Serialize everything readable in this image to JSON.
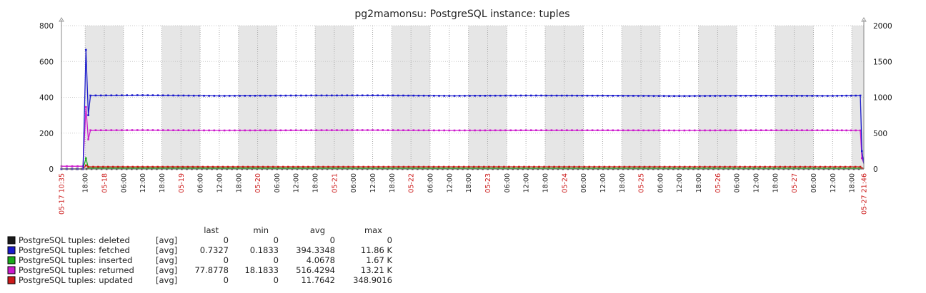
{
  "chart_data": {
    "type": "line",
    "title": "pg2mamonsu: PostgreSQL instance: tuples",
    "y_left": {
      "ticks": [
        "800",
        "600",
        "400",
        "200",
        "0"
      ],
      "ylim": [
        0,
        800
      ]
    },
    "y_right": {
      "ticks": [
        "2000",
        "1500",
        "1000",
        "500",
        "0"
      ],
      "ylim": [
        0,
        2000
      ]
    },
    "x_axis": {
      "start_label": "05-17 10:35",
      "end_label": "05-27 21:46",
      "date_labels": [
        "05-18",
        "05-19",
        "05-20",
        "05-21",
        "05-22",
        "05-23",
        "05-24",
        "05-25",
        "05-26",
        "05-27"
      ],
      "time_labels": [
        "18:00",
        "06:00",
        "12:00"
      ]
    },
    "grid": true,
    "legend_header": {
      "last": "last",
      "min": "min",
      "avg": "avg",
      "max": "max"
    },
    "series": [
      {
        "name": "PostgreSQL tuples: deleted",
        "func": "[avg]",
        "last": "0",
        "min": "0",
        "avg": "0",
        "max": "0",
        "color": "#1a1a1a",
        "axis": "left",
        "points": [
          [
            "05-17 10:35",
            0
          ],
          [
            "05-27 21:46",
            0
          ]
        ]
      },
      {
        "name": "PostgreSQL tuples: fetched",
        "func": "[avg]",
        "last": "0.7327",
        "min": "0.1833",
        "avg": "394.3348",
        "max": "11.86 K",
        "color": "#1a1acc",
        "axis": "left",
        "points": [
          [
            "05-17 10:35",
            0
          ],
          [
            "05-17 17:20",
            0
          ],
          [
            "05-17 18:15",
            665
          ],
          [
            "05-17 19:00",
            300
          ],
          [
            "05-17 19:40",
            410
          ],
          [
            "05-18 12:00",
            412
          ],
          [
            "05-19 12:00",
            408
          ],
          [
            "05-20 12:00",
            410
          ],
          [
            "05-21 12:00",
            411
          ],
          [
            "05-22 12:00",
            408
          ],
          [
            "05-23 12:00",
            410
          ],
          [
            "05-24 12:00",
            409
          ],
          [
            "05-25 12:00",
            407
          ],
          [
            "05-26 12:00",
            409
          ],
          [
            "05-27 12:00",
            408
          ],
          [
            "05-27 20:40",
            410
          ],
          [
            "05-27 21:10",
            100
          ],
          [
            "05-27 21:46",
            30
          ]
        ]
      },
      {
        "name": "PostgreSQL tuples: inserted",
        "func": "[avg]",
        "last": "0",
        "min": "0",
        "avg": "4.0678",
        "max": "1.67 K",
        "color": "#1aaa1a",
        "axis": "left",
        "points": [
          [
            "05-17 10:35",
            0
          ],
          [
            "05-17 17:20",
            0
          ],
          [
            "05-17 18:15",
            60
          ],
          [
            "05-17 19:00",
            5
          ],
          [
            "05-27 21:46",
            3
          ]
        ]
      },
      {
        "name": "PostgreSQL tuples: returned",
        "func": "[avg]",
        "last": "77.8778",
        "min": "18.1833",
        "avg": "516.4294",
        "max": "13.21 K",
        "color": "#cc1acc",
        "axis": "left",
        "points": [
          [
            "05-17 10:35",
            15
          ],
          [
            "05-17 17:20",
            15
          ],
          [
            "05-17 18:15",
            345
          ],
          [
            "05-17 19:00",
            165
          ],
          [
            "05-17 19:40",
            216
          ],
          [
            "05-18 12:00",
            217
          ],
          [
            "05-19 12:00",
            215
          ],
          [
            "05-20 12:00",
            216
          ],
          [
            "05-21 12:00",
            217
          ],
          [
            "05-22 12:00",
            215
          ],
          [
            "05-23 12:00",
            216
          ],
          [
            "05-24 12:00",
            216
          ],
          [
            "05-25 12:00",
            215
          ],
          [
            "05-26 12:00",
            216
          ],
          [
            "05-27 12:00",
            216
          ],
          [
            "05-27 20:40",
            215
          ],
          [
            "05-27 21:10",
            60
          ],
          [
            "05-27 21:46",
            31
          ]
        ]
      },
      {
        "name": "PostgreSQL tuples: updated",
        "func": "[avg]",
        "last": "0",
        "min": "0",
        "avg": "11.7642",
        "max": "348.9016",
        "color": "#cc1a1a",
        "axis": "left",
        "points": [
          [
            "05-17 10:35",
            0
          ],
          [
            "05-17 17:20",
            0
          ],
          [
            "05-17 18:15",
            20
          ],
          [
            "05-17 19:00",
            12
          ],
          [
            "05-18 12:00",
            12
          ],
          [
            "05-27 20:40",
            12
          ],
          [
            "05-27 21:10",
            4
          ],
          [
            "05-27 21:46",
            0
          ]
        ]
      }
    ]
  }
}
